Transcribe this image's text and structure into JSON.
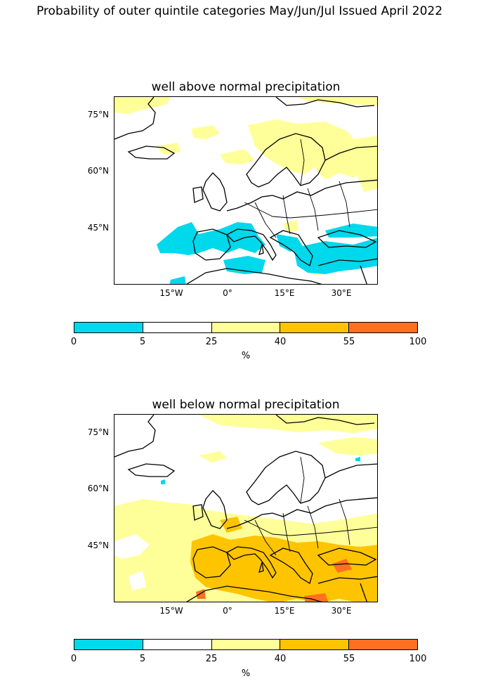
{
  "figure": {
    "title": "Probability of outer quintile categories May/Jun/Jul Issued April 2022"
  },
  "panels": [
    {
      "title": "well above normal precipitation",
      "lat_labels": [
        "75°N",
        "60°N",
        "45°N"
      ],
      "lon_labels": [
        "15°W",
        "0°",
        "15°E",
        "30°E"
      ],
      "dominant_category": "0-5 (cyan) over Iberia, Mediterranean, Black Sea region; 25-40 (yellow) over Scandinavia, northern Russia"
    },
    {
      "title": "well below normal precipitation",
      "lat_labels": [
        "75°N",
        "60°N",
        "45°N"
      ],
      "lon_labels": [
        "15°W",
        "0°",
        "15°E",
        "30°E"
      ],
      "dominant_category": "40-55 (orange) over Iberia, Mediterranean, Balkans; 25-40 (yellow) over western Europe and Atlantic"
    }
  ],
  "colorbar": {
    "boundaries": [
      "0",
      "5",
      "25",
      "40",
      "55",
      "100"
    ],
    "colors": [
      "#00d8ec",
      "#ffffff",
      "#ffff99",
      "#ffc400",
      "#ff7020"
    ],
    "unit": "%"
  }
}
